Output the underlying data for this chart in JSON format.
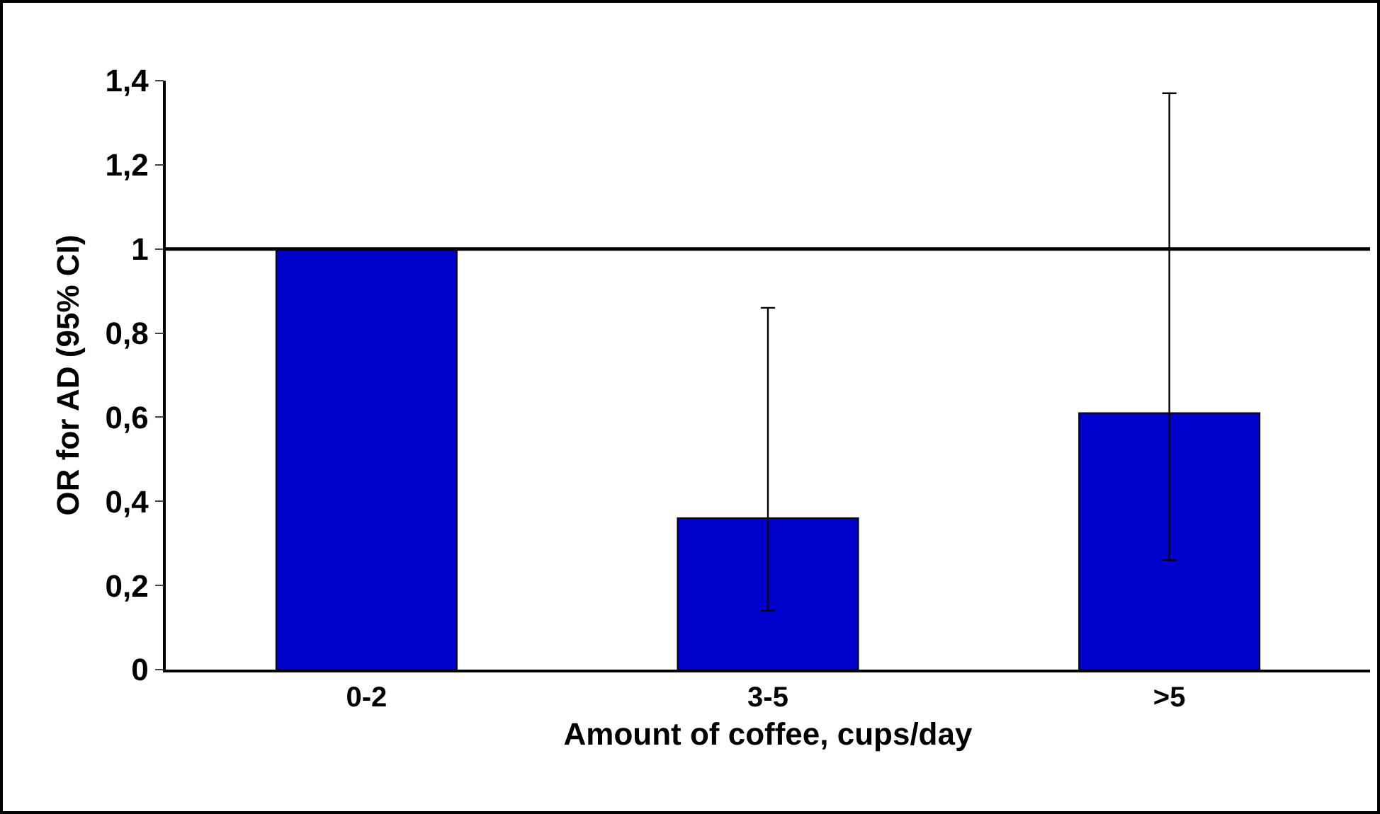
{
  "chart_data": {
    "type": "bar",
    "xlabel": "Amount of coffee, cups/day",
    "ylabel": "OR for AD (95% CI)",
    "categories": [
      "0-2",
      "3-5",
      ">5"
    ],
    "series": [
      {
        "color": "#0000cc",
        "values": [
          1,
          0.36,
          0.61
        ],
        "errors": [
          null,
          [
            0.14,
            0.86
          ],
          [
            0.26,
            1.37
          ]
        ]
      }
    ],
    "ylim": [
      0,
      1.4
    ],
    "yticks": [
      0,
      {
        "value": 0.2,
        "label": "0,2"
      },
      {
        "value": 0.4,
        "label": "0,4"
      },
      {
        "value": 0.6,
        "label": "0,6"
      },
      {
        "value": 0.8,
        "label": "0,8"
      },
      1,
      {
        "value": 1.2,
        "label": "1,2"
      },
      {
        "value": 1.4,
        "label": "1,4"
      }
    ],
    "ref_lines": [
      {
        "axis": "y",
        "value": 1,
        "color": "#000000"
      }
    ],
    "grid": false
  }
}
